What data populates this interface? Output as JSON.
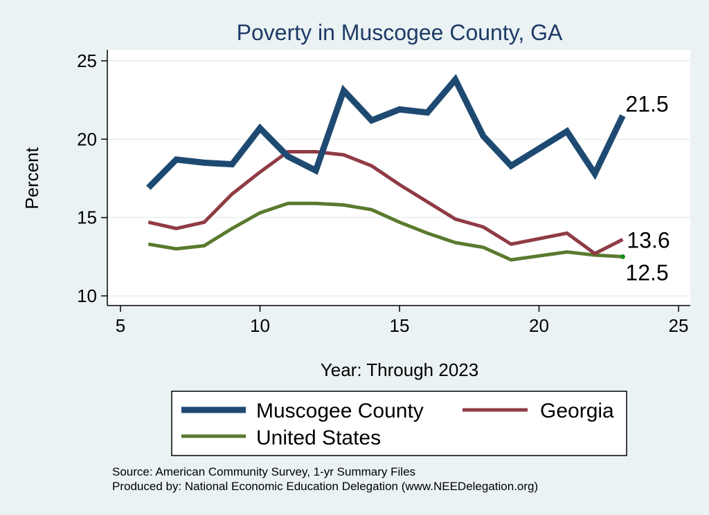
{
  "chart_data": {
    "type": "line",
    "title": "Poverty in Muscogee County, GA",
    "xlabel": "Year: Through 2023",
    "ylabel": "Percent",
    "xlim": [
      5,
      25
    ],
    "ylim": [
      10,
      25
    ],
    "xticks": [
      5,
      10,
      15,
      20,
      25
    ],
    "yticks": [
      10,
      15,
      20,
      25
    ],
    "grid": true,
    "x": [
      6,
      7,
      8,
      9,
      10,
      11,
      12,
      13,
      14,
      15,
      16,
      17,
      18,
      19,
      21,
      22,
      23
    ],
    "series": [
      {
        "name": "Muscogee County",
        "color": "#1e4a72",
        "values": [
          16.9,
          18.7,
          18.5,
          18.4,
          20.7,
          18.9,
          18.0,
          23.1,
          21.2,
          21.9,
          21.7,
          23.8,
          20.2,
          18.3,
          20.5,
          17.8,
          21.5
        ],
        "end_label": "21.5"
      },
      {
        "name": "Georgia",
        "color": "#8f3b45",
        "values": [
          14.7,
          14.3,
          14.7,
          16.5,
          17.9,
          19.2,
          19.2,
          19.0,
          18.3,
          17.1,
          16.0,
          14.9,
          14.4,
          13.3,
          14.0,
          12.7,
          13.6
        ],
        "end_label": "13.6"
      },
      {
        "name": "United States",
        "color": "#5a7a2e",
        "values": [
          13.3,
          13.0,
          13.2,
          14.3,
          15.3,
          15.9,
          15.9,
          15.8,
          15.5,
          14.7,
          14.0,
          13.4,
          13.1,
          12.3,
          12.8,
          12.6,
          12.5
        ],
        "end_label": "12.5"
      }
    ],
    "legend": {
      "position": "bottom",
      "items": [
        "Muscogee County",
        "Georgia",
        "United States"
      ]
    },
    "footnotes": [
      "Source: American Community Survey, 1-yr Summary Files",
      "Produced by: National Economic Education Delegation (www.NEEDelegation.org)"
    ]
  }
}
